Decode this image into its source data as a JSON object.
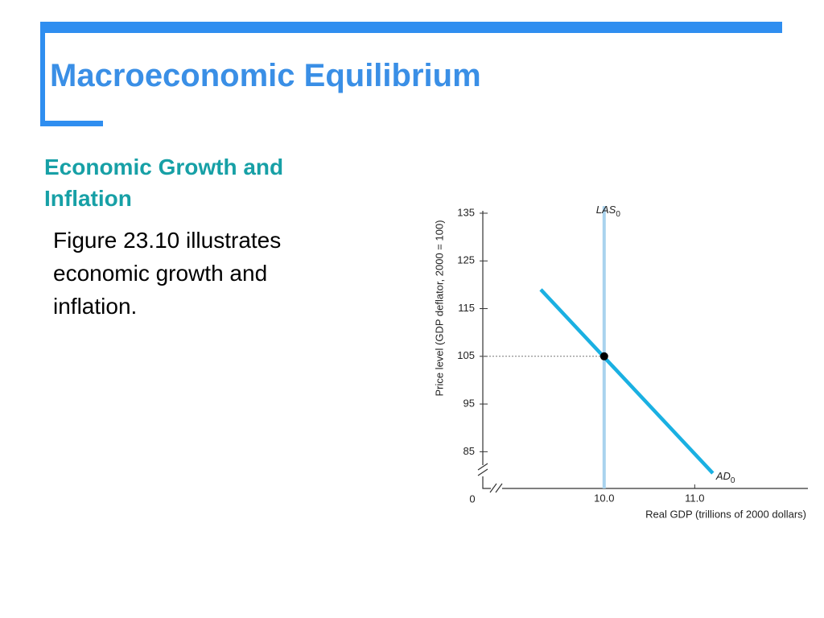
{
  "header": {
    "title": "Macroeconomic Equilibrium"
  },
  "section": {
    "heading": "Economic Growth and Inflation",
    "body": "Figure 23.10 illustrates economic growth and inflation."
  },
  "chart_data": {
    "type": "line",
    "y_label": "Price level (GDP deflator, 2000 = 100)",
    "x_label": "Real GDP (trillions of 2000 dollars)",
    "origin_label": "0",
    "xlim": [
      8.66,
      12.25
    ],
    "ylim": [
      77.3,
      135.5
    ],
    "xticks": [
      {
        "value": 10,
        "label": "10.0"
      },
      {
        "value": 11,
        "label": "11.0"
      }
    ],
    "yticks": [
      85,
      95,
      105,
      115,
      125,
      135
    ],
    "series": [
      {
        "name": "LAS",
        "sub": "0",
        "color": "#a9d3ee",
        "x": [
          10,
          10
        ],
        "values": [
          77.3,
          136.5
        ]
      },
      {
        "name": "AD",
        "sub": "0",
        "color": "#1ab0e2",
        "x": [
          9.3,
          11.2
        ],
        "values": [
          119,
          80.5
        ]
      }
    ],
    "point": {
      "x": 10,
      "y": 105,
      "color": "#000000"
    }
  }
}
